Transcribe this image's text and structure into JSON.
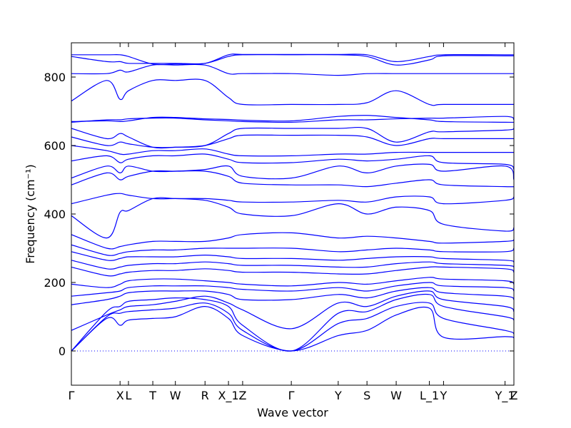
{
  "chart_data": {
    "type": "line",
    "title": "",
    "xlabel": "Wave vector",
    "ylabel": "Frequency (cm⁻¹)",
    "ylim": [
      -100,
      900
    ],
    "yticks": [
      0,
      200,
      400,
      600,
      800
    ],
    "xlim": [
      0,
      10
    ],
    "grid": false,
    "line_color": "#0000ff",
    "zero_line_color": "#0000ff",
    "high_symmetry_points": [
      {
        "label": "Γ",
        "x": 0.0
      },
      {
        "label": "X",
        "x": 1.1
      },
      {
        "label": "L",
        "x": 1.29
      },
      {
        "label": "T",
        "x": 1.84
      },
      {
        "label": "W",
        "x": 2.35
      },
      {
        "label": "R",
        "x": 3.02
      },
      {
        "label": "X_1",
        "x": 3.55
      },
      {
        "label": "Z",
        "x": 3.87
      },
      {
        "label": "Γ",
        "x": 4.97
      },
      {
        "label": "Y",
        "x": 6.03
      },
      {
        "label": "S",
        "x": 6.68
      },
      {
        "label": "W",
        "x": 7.34
      },
      {
        "label": "L_1",
        "x": 8.09
      },
      {
        "label": "Y",
        "x": 8.41
      },
      {
        "label": "Y_1",
        "x": 9.8
      },
      {
        "label": "Z",
        "x": 10.0
      }
    ],
    "series": [
      {
        "x": [
          0,
          0.8,
          1.1,
          1.29,
          1.84,
          2.35,
          3.02,
          3.55,
          3.87,
          4.97,
          6.03,
          6.68,
          7.34,
          8.09,
          8.41,
          9.8,
          10
        ],
        "values": [
          0,
          95,
          75,
          90,
          95,
          100,
          130,
          95,
          45,
          0,
          45,
          60,
          105,
          125,
          40,
          42,
          38
        ]
      },
      {
        "x": [
          0,
          0.8,
          1.1,
          1.29,
          1.84,
          2.35,
          3.02,
          3.55,
          3.87,
          4.97,
          6.03,
          6.68,
          7.34,
          8.09,
          8.41,
          9.8,
          10
        ],
        "values": [
          0,
          100,
          110,
          115,
          120,
          125,
          140,
          110,
          60,
          0,
          80,
          95,
          130,
          140,
          95,
          60,
          50
        ]
      },
      {
        "x": [
          0,
          0.8,
          1.1,
          1.29,
          1.84,
          2.35,
          3.02,
          3.55,
          3.87,
          4.97,
          6.03,
          6.68,
          7.34,
          8.09,
          8.41,
          9.8,
          10
        ],
        "values": [
          0,
          115,
          130,
          145,
          150,
          155,
          150,
          130,
          75,
          0,
          110,
          115,
          150,
          165,
          130,
          100,
          90
        ]
      },
      {
        "x": [
          0,
          0.8,
          1.1,
          1.29,
          1.84,
          2.35,
          3.02,
          3.55,
          3.87,
          4.97,
          6.03,
          6.68,
          7.34,
          8.09,
          8.41,
          9.8,
          10
        ],
        "values": [
          60,
          105,
          120,
          130,
          135,
          145,
          160,
          140,
          120,
          65,
          140,
          130,
          160,
          175,
          150,
          130,
          115
        ]
      },
      {
        "x": [
          0,
          0.8,
          1.1,
          1.29,
          1.84,
          2.35,
          3.02,
          3.55,
          3.87,
          4.97,
          6.03,
          6.68,
          7.34,
          8.09,
          8.41,
          9.8,
          10
        ],
        "values": [
          135,
          150,
          160,
          170,
          175,
          175,
          175,
          165,
          150,
          150,
          165,
          155,
          175,
          185,
          170,
          160,
          150
        ]
      },
      {
        "x": [
          0,
          0.8,
          1.1,
          1.29,
          1.84,
          2.35,
          3.02,
          3.55,
          3.87,
          4.97,
          6.03,
          6.68,
          7.34,
          8.09,
          8.41,
          9.8,
          10
        ],
        "values": [
          160,
          170,
          175,
          185,
          190,
          190,
          190,
          185,
          180,
          175,
          185,
          175,
          190,
          200,
          190,
          185,
          175
        ]
      },
      {
        "x": [
          0,
          0.8,
          1.1,
          1.29,
          1.84,
          2.35,
          3.02,
          3.55,
          3.87,
          4.97,
          6.03,
          6.68,
          7.34,
          8.09,
          8.41,
          9.8,
          10
        ],
        "values": [
          195,
          185,
          195,
          205,
          210,
          210,
          205,
          200,
          195,
          190,
          200,
          195,
          205,
          215,
          210,
          205,
          195
        ]
      },
      {
        "x": [
          0,
          0.8,
          1.1,
          1.29,
          1.84,
          2.35,
          3.02,
          3.55,
          3.87,
          4.97,
          6.03,
          6.68,
          7.34,
          8.09,
          8.41,
          9.8,
          10
        ],
        "values": [
          245,
          220,
          225,
          230,
          235,
          235,
          240,
          235,
          230,
          230,
          225,
          225,
          235,
          245,
          245,
          240,
          230
        ]
      },
      {
        "x": [
          0,
          0.8,
          1.1,
          1.29,
          1.84,
          2.35,
          3.02,
          3.55,
          3.87,
          4.97,
          6.03,
          6.68,
          7.34,
          8.09,
          8.41,
          9.8,
          10
        ],
        "values": [
          265,
          240,
          245,
          250,
          255,
          255,
          260,
          255,
          250,
          250,
          245,
          245,
          255,
          260,
          255,
          250,
          245
        ]
      },
      {
        "x": [
          0,
          0.8,
          1.1,
          1.29,
          1.84,
          2.35,
          3.02,
          3.55,
          3.87,
          4.97,
          6.03,
          6.68,
          7.34,
          8.09,
          8.41,
          9.8,
          10
        ],
        "values": [
          290,
          265,
          270,
          275,
          275,
          275,
          280,
          275,
          270,
          270,
          265,
          270,
          275,
          275,
          270,
          265,
          260
        ]
      },
      {
        "x": [
          0,
          0.8,
          1.1,
          1.29,
          1.84,
          2.35,
          3.02,
          3.55,
          3.87,
          4.97,
          6.03,
          6.68,
          7.34,
          8.09,
          8.41,
          9.8,
          10
        ],
        "values": [
          310,
          280,
          285,
          290,
          295,
          295,
          300,
          300,
          300,
          300,
          290,
          295,
          300,
          295,
          290,
          290,
          300
        ]
      },
      {
        "x": [
          0,
          0.8,
          1.1,
          1.29,
          1.84,
          2.35,
          3.02,
          3.55,
          3.87,
          4.97,
          6.03,
          6.68,
          7.34,
          8.09,
          8.41,
          9.8,
          10
        ],
        "values": [
          340,
          300,
          305,
          310,
          320,
          320,
          320,
          330,
          340,
          345,
          330,
          335,
          330,
          320,
          315,
          320,
          325
        ]
      },
      {
        "x": [
          0,
          0.8,
          1.1,
          1.29,
          1.84,
          2.35,
          3.02,
          3.55,
          3.87,
          4.97,
          6.03,
          6.68,
          7.34,
          8.09,
          8.41,
          9.8,
          10
        ],
        "values": [
          395,
          330,
          405,
          410,
          445,
          445,
          440,
          420,
          400,
          395,
          430,
          400,
          420,
          410,
          370,
          350,
          360
        ]
      },
      {
        "x": [
          0,
          0.8,
          1.1,
          1.29,
          1.84,
          2.35,
          3.02,
          3.55,
          3.87,
          4.97,
          6.03,
          6.68,
          7.34,
          8.09,
          8.41,
          9.8,
          10
        ],
        "values": [
          430,
          455,
          460,
          455,
          445,
          445,
          445,
          440,
          435,
          435,
          440,
          435,
          450,
          450,
          430,
          440,
          450
        ]
      },
      {
        "x": [
          0,
          0.8,
          1.1,
          1.29,
          1.84,
          2.35,
          3.02,
          3.55,
          3.87,
          4.97,
          6.03,
          6.68,
          7.34,
          8.09,
          8.41,
          9.8,
          10
        ],
        "values": [
          485,
          520,
          500,
          510,
          525,
          525,
          525,
          510,
          490,
          485,
          485,
          480,
          490,
          500,
          485,
          480,
          480
        ]
      },
      {
        "x": [
          0,
          0.8,
          1.1,
          1.29,
          1.84,
          2.35,
          3.02,
          3.55,
          3.87,
          4.97,
          6.03,
          6.68,
          7.34,
          8.09,
          8.41,
          9.8,
          10
        ],
        "values": [
          505,
          540,
          520,
          540,
          525,
          525,
          530,
          540,
          510,
          505,
          540,
          520,
          540,
          545,
          525,
          540,
          500
        ]
      },
      {
        "x": [
          0,
          0.8,
          1.1,
          1.29,
          1.84,
          2.35,
          3.02,
          3.55,
          3.87,
          4.97,
          6.03,
          6.68,
          7.34,
          8.09,
          8.41,
          9.8,
          10
        ],
        "values": [
          555,
          570,
          550,
          560,
          570,
          570,
          575,
          560,
          550,
          550,
          560,
          555,
          560,
          570,
          550,
          545,
          530
        ]
      },
      {
        "x": [
          0,
          0.8,
          1.1,
          1.29,
          1.84,
          2.35,
          3.02,
          3.55,
          3.87,
          4.97,
          6.03,
          6.68,
          7.34,
          8.09,
          8.41,
          9.8,
          10
        ],
        "values": [
          600,
          585,
          575,
          575,
          585,
          585,
          590,
          575,
          570,
          570,
          575,
          575,
          580,
          580,
          580,
          580,
          580
        ]
      },
      {
        "x": [
          0,
          0.8,
          1.1,
          1.29,
          1.84,
          2.35,
          3.02,
          3.55,
          3.87,
          4.97,
          6.03,
          6.68,
          7.34,
          8.09,
          8.41,
          9.8,
          10
        ],
        "values": [
          625,
          600,
          610,
          605,
          595,
          595,
          600,
          620,
          630,
          630,
          630,
          625,
          600,
          620,
          620,
          620,
          620
        ]
      },
      {
        "x": [
          0,
          0.8,
          1.1,
          1.29,
          1.84,
          2.35,
          3.02,
          3.55,
          3.87,
          4.97,
          6.03,
          6.68,
          7.34,
          8.09,
          8.41,
          9.8,
          10
        ],
        "values": [
          650,
          620,
          635,
          625,
          595,
          595,
          600,
          635,
          650,
          650,
          650,
          650,
          610,
          640,
          640,
          645,
          650
        ]
      },
      {
        "x": [
          0,
          0.8,
          1.1,
          1.29,
          1.84,
          2.35,
          3.02,
          3.55,
          3.87,
          4.97,
          6.03,
          6.68,
          7.34,
          8.09,
          8.41,
          9.8,
          10
        ],
        "values": [
          668,
          675,
          675,
          678,
          680,
          680,
          675,
          672,
          670,
          668,
          675,
          675,
          678,
          680,
          680,
          685,
          675
        ]
      },
      {
        "x": [
          0,
          0.8,
          1.1,
          1.29,
          1.84,
          2.35,
          3.02,
          3.55,
          3.87,
          4.97,
          6.03,
          6.68,
          7.34,
          8.09,
          8.41,
          9.8,
          10
        ],
        "values": [
          670,
          672,
          670,
          672,
          682,
          682,
          678,
          676,
          674,
          672,
          685,
          688,
          682,
          675,
          670,
          668,
          668
        ]
      },
      {
        "x": [
          0,
          0.8,
          1.1,
          1.29,
          1.84,
          2.35,
          3.02,
          3.55,
          3.87,
          4.97,
          6.03,
          6.68,
          7.34,
          8.09,
          8.41,
          9.8,
          10
        ],
        "values": [
          730,
          790,
          735,
          760,
          790,
          790,
          790,
          740,
          720,
          720,
          720,
          725,
          760,
          720,
          720,
          720,
          720
        ]
      },
      {
        "x": [
          0,
          0.8,
          1.1,
          1.29,
          1.84,
          2.35,
          3.02,
          3.55,
          3.87,
          4.97,
          6.03,
          6.68,
          7.34,
          8.09,
          8.41,
          9.8,
          10
        ],
        "values": [
          810,
          810,
          820,
          815,
          835,
          835,
          835,
          810,
          810,
          810,
          805,
          810,
          810,
          810,
          810,
          810,
          810
        ]
      },
      {
        "x": [
          0,
          0.8,
          1.1,
          1.29,
          1.84,
          2.35,
          3.02,
          3.55,
          3.87,
          4.97,
          6.03,
          6.68,
          7.34,
          8.09,
          8.41,
          9.8,
          10
        ],
        "values": [
          860,
          845,
          845,
          840,
          840,
          840,
          840,
          860,
          865,
          865,
          865,
          860,
          835,
          850,
          862,
          862,
          862
        ]
      },
      {
        "x": [
          0,
          0.8,
          1.1,
          1.29,
          1.84,
          2.35,
          3.02,
          3.55,
          3.87,
          4.97,
          6.03,
          6.68,
          7.34,
          8.09,
          8.41,
          9.8,
          10
        ],
        "values": [
          865,
          865,
          865,
          860,
          838,
          838,
          840,
          865,
          866,
          866,
          866,
          865,
          845,
          860,
          865,
          865,
          865
        ]
      }
    ]
  }
}
